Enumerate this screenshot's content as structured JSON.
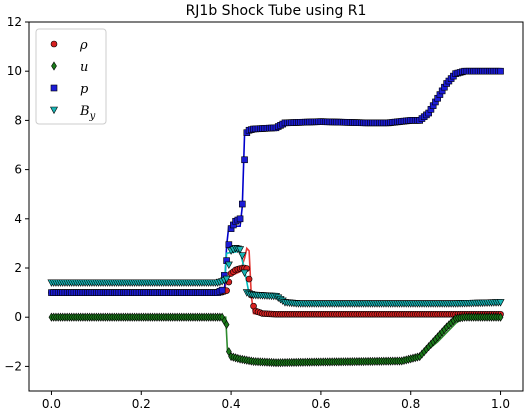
{
  "chart_data": {
    "type": "line",
    "title": "RJ1b Shock Tube using R1",
    "xlabel": "",
    "ylabel": "",
    "xlim": [
      -0.05,
      1.05
    ],
    "ylim": [
      -3,
      12
    ],
    "xticks": [
      0.0,
      0.2,
      0.4,
      0.6,
      0.8,
      1.0
    ],
    "xtick_labels": [
      "0.0",
      "0.2",
      "0.4",
      "0.6",
      "0.8",
      "1.0"
    ],
    "yticks": [
      -2,
      0,
      2,
      4,
      6,
      8,
      10,
      12
    ],
    "ytick_labels": [
      "−2",
      "0",
      "2",
      "4",
      "6",
      "8",
      "10",
      "12"
    ],
    "grid": false,
    "legend_position": "top-left",
    "legend": [
      "ρ",
      "u",
      "p",
      "B_y"
    ],
    "legend_display": [
      {
        "main": "ρ",
        "sub": ""
      },
      {
        "main": "u",
        "sub": ""
      },
      {
        "main": "p",
        "sub": ""
      },
      {
        "main": "B",
        "sub": "y"
      }
    ],
    "series": [
      {
        "name": "ρ",
        "marker": "circle",
        "color": "#d62020",
        "line_color": "#e53935",
        "points": [
          [
            0.0,
            1.0
          ],
          [
            0.36,
            1.0
          ],
          [
            0.38,
            1.02
          ],
          [
            0.39,
            1.08
          ],
          [
            0.4,
            1.78
          ],
          [
            0.41,
            1.92
          ],
          [
            0.42,
            1.98
          ],
          [
            0.43,
            2.0
          ],
          [
            0.435,
            1.98
          ],
          [
            0.44,
            1.55
          ],
          [
            0.445,
            0.9
          ],
          [
            0.45,
            0.45
          ],
          [
            0.455,
            0.25
          ],
          [
            0.47,
            0.15
          ],
          [
            0.5,
            0.12
          ],
          [
            0.6,
            0.12
          ],
          [
            0.8,
            0.12
          ],
          [
            1.0,
            0.12
          ]
        ],
        "line": [
          [
            0.0,
            1.0
          ],
          [
            0.385,
            1.0
          ],
          [
            0.39,
            1.6
          ],
          [
            0.42,
            1.85
          ],
          [
            0.43,
            2.4
          ],
          [
            0.435,
            2.8
          ],
          [
            0.44,
            2.7
          ],
          [
            0.445,
            0.9
          ],
          [
            0.45,
            0.15
          ],
          [
            0.46,
            0.12
          ],
          [
            0.8,
            0.1
          ],
          [
            0.9,
            0.1
          ],
          [
            1.0,
            0.1
          ]
        ]
      },
      {
        "name": "u",
        "marker": "diamond",
        "color": "#1a7a1a",
        "line_color": "#2e8b2e",
        "points": [
          [
            0.0,
            0.0
          ],
          [
            0.38,
            0.0
          ],
          [
            0.39,
            -0.3
          ],
          [
            0.395,
            -1.4
          ],
          [
            0.4,
            -1.6
          ],
          [
            0.42,
            -1.7
          ],
          [
            0.45,
            -1.8
          ],
          [
            0.5,
            -1.85
          ],
          [
            0.6,
            -1.82
          ],
          [
            0.7,
            -1.8
          ],
          [
            0.78,
            -1.78
          ],
          [
            0.82,
            -1.6
          ],
          [
            0.85,
            -1.0
          ],
          [
            0.88,
            -0.4
          ],
          [
            0.9,
            -0.05
          ],
          [
            0.92,
            0.0
          ],
          [
            1.0,
            0.0
          ]
        ],
        "line": [
          [
            0.0,
            0.0
          ],
          [
            0.388,
            0.0
          ],
          [
            0.392,
            -1.4
          ],
          [
            0.4,
            -1.6
          ],
          [
            0.45,
            -1.8
          ],
          [
            0.6,
            -1.8
          ],
          [
            0.78,
            -1.8
          ],
          [
            0.82,
            -1.6
          ],
          [
            0.86,
            -1.0
          ],
          [
            0.9,
            -0.25
          ],
          [
            0.92,
            0.0
          ],
          [
            1.0,
            0.0
          ]
        ]
      },
      {
        "name": "p",
        "marker": "square",
        "color": "#1c1cd6",
        "line_color": "#0000cc",
        "points": [
          [
            0.0,
            1.0
          ],
          [
            0.37,
            1.0
          ],
          [
            0.38,
            1.1
          ],
          [
            0.39,
            2.3
          ],
          [
            0.4,
            3.6
          ],
          [
            0.41,
            3.9
          ],
          [
            0.42,
            4.0
          ],
          [
            0.425,
            4.6
          ],
          [
            0.43,
            6.4
          ],
          [
            0.435,
            7.5
          ],
          [
            0.44,
            7.6
          ],
          [
            0.45,
            7.65
          ],
          [
            0.5,
            7.7
          ],
          [
            0.52,
            7.9
          ],
          [
            0.6,
            7.95
          ],
          [
            0.7,
            7.9
          ],
          [
            0.75,
            7.9
          ],
          [
            0.8,
            8.0
          ],
          [
            0.82,
            8.0
          ],
          [
            0.84,
            8.3
          ],
          [
            0.86,
            8.9
          ],
          [
            0.88,
            9.5
          ],
          [
            0.9,
            9.9
          ],
          [
            0.92,
            10.0
          ],
          [
            1.0,
            10.0
          ]
        ],
        "line": [
          [
            0.0,
            1.0
          ],
          [
            0.385,
            1.0
          ],
          [
            0.39,
            2.9
          ],
          [
            0.395,
            3.7
          ],
          [
            0.42,
            3.7
          ],
          [
            0.425,
            4.5
          ],
          [
            0.43,
            7.5
          ],
          [
            0.44,
            7.6
          ],
          [
            0.5,
            7.7
          ],
          [
            0.52,
            7.9
          ],
          [
            0.6,
            7.95
          ],
          [
            0.7,
            7.9
          ],
          [
            0.8,
            8.0
          ],
          [
            0.83,
            8.1
          ],
          [
            0.86,
            8.8
          ],
          [
            0.88,
            9.5
          ],
          [
            0.9,
            9.9
          ],
          [
            0.92,
            10.0
          ],
          [
            1.0,
            10.0
          ]
        ]
      },
      {
        "name": "B_y",
        "marker": "triangle-down",
        "color": "#17b3b3",
        "line_color": "#00bcbc",
        "points": [
          [
            0.0,
            1.4
          ],
          [
            0.37,
            1.4
          ],
          [
            0.38,
            1.45
          ],
          [
            0.39,
            1.55
          ],
          [
            0.4,
            2.7
          ],
          [
            0.41,
            2.8
          ],
          [
            0.42,
            2.75
          ],
          [
            0.425,
            2.5
          ],
          [
            0.43,
            1.8
          ],
          [
            0.435,
            1.0
          ],
          [
            0.44,
            0.95
          ],
          [
            0.45,
            0.9
          ],
          [
            0.5,
            0.85
          ],
          [
            0.52,
            0.6
          ],
          [
            0.55,
            0.55
          ],
          [
            0.6,
            0.55
          ],
          [
            0.8,
            0.55
          ],
          [
            0.9,
            0.55
          ],
          [
            1.0,
            0.6
          ]
        ],
        "line": [
          [
            0.0,
            1.4
          ],
          [
            0.385,
            1.4
          ],
          [
            0.39,
            2.6
          ],
          [
            0.41,
            2.65
          ],
          [
            0.42,
            2.7
          ],
          [
            0.43,
            1.9
          ],
          [
            0.44,
            0.95
          ],
          [
            0.5,
            0.95
          ],
          [
            0.52,
            0.6
          ],
          [
            0.6,
            0.55
          ],
          [
            0.9,
            0.55
          ],
          [
            1.0,
            0.6
          ]
        ]
      }
    ]
  }
}
